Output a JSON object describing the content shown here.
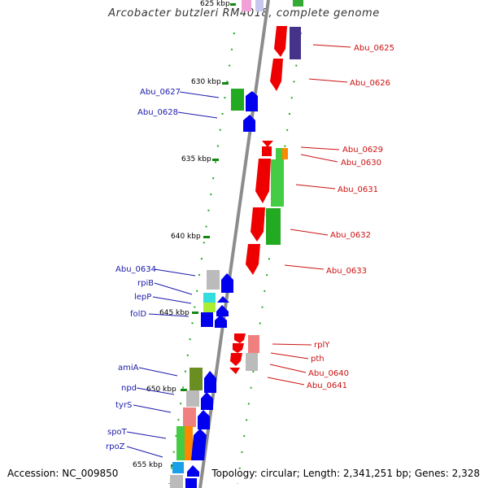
{
  "title": "Arcobacter butzleri RM4018, complete genome",
  "footer": {
    "accession": "Accession: NC_009850",
    "summary": "Topology: circular; Length: 2,341,251 bp; Genes: 2,328"
  },
  "colors": {
    "forward": "#0000ee",
    "reverse": "#ee0000",
    "backbone": "#8c8c8c",
    "ticks": "#118811",
    "label_forward": "#1a1aaa",
    "label_reverse": "#cc1111"
  },
  "ticks": [
    {
      "label": "625 kbp"
    },
    {
      "label": "630 kbp"
    },
    {
      "label": "635 kbp"
    },
    {
      "label": "640 kbp"
    },
    {
      "label": "645 kbp"
    },
    {
      "label": "650 kbp"
    },
    {
      "label": "655 kbp"
    }
  ],
  "forward_labels": [
    "Abu_0627",
    "Abu_0628",
    "Abu_0634",
    "rpiB",
    "lepP",
    "folD",
    "amiA",
    "npd",
    "tyrS",
    "spoT",
    "rpoZ"
  ],
  "reverse_labels": [
    "Abu_0625",
    "Abu_0626",
    "Abu_0629",
    "Abu_0630",
    "Abu_0631",
    "Abu_0632",
    "Abu_0633",
    "rplY",
    "pth",
    "Abu_0640",
    "Abu_0641"
  ]
}
